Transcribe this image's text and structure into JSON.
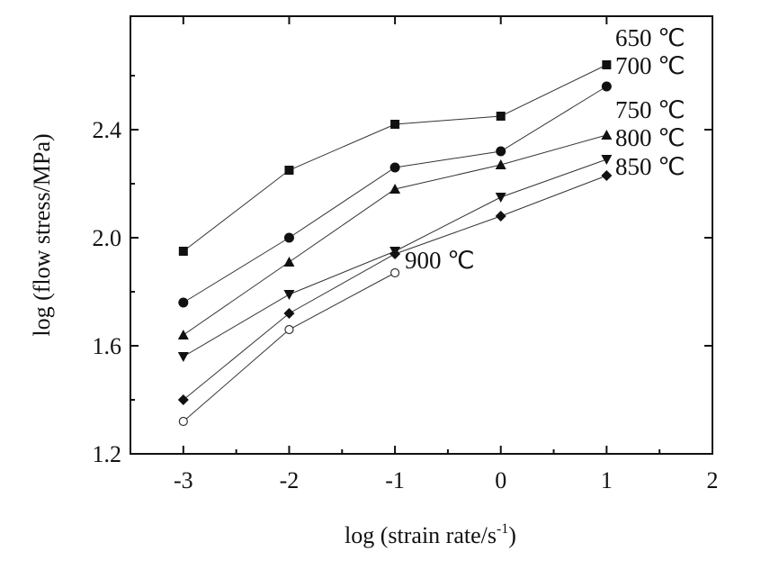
{
  "chart_data": {
    "type": "line",
    "title": "",
    "xlabel": "log (strain rate/s",
    "xlabel_sup": "-1",
    "xlabel_close": ")",
    "ylabel": "log (flow stress/MPa)",
    "xlim": [
      -3.5,
      2
    ],
    "ylim": [
      1.2,
      2.82
    ],
    "x_ticks": [
      -3,
      -2,
      -1,
      0,
      1,
      2
    ],
    "x_tick_labels": [
      "-3",
      "-2",
      "-1",
      "0",
      "1",
      "2"
    ],
    "y_ticks": [
      1.2,
      1.6,
      2.0,
      2.4
    ],
    "y_tick_labels": [
      "1.2",
      "1.6",
      "2.0",
      "2.4"
    ],
    "grid": false,
    "legend": "inline labels at right end of lines",
    "series": [
      {
        "name": "650 ℃",
        "marker": "square",
        "x": [
          -3,
          -2,
          -1,
          0,
          1
        ],
        "y": [
          1.95,
          2.25,
          2.42,
          2.45,
          2.64
        ]
      },
      {
        "name": "700 ℃",
        "marker": "circle",
        "x": [
          -3,
          -2,
          -1,
          0,
          1
        ],
        "y": [
          1.76,
          2.0,
          2.26,
          2.32,
          2.56
        ]
      },
      {
        "name": "750 ℃",
        "marker": "triangle-up",
        "x": [
          -3,
          -2,
          -1,
          0,
          1
        ],
        "y": [
          1.64,
          1.91,
          2.18,
          2.27,
          2.38
        ]
      },
      {
        "name": "800 ℃",
        "marker": "triangle-down",
        "x": [
          -3,
          -2,
          -1,
          0,
          1
        ],
        "y": [
          1.56,
          1.79,
          1.95,
          2.15,
          2.29
        ]
      },
      {
        "name": "850 ℃",
        "marker": "diamond",
        "x": [
          -3,
          -2,
          -1,
          0,
          1
        ],
        "y": [
          1.4,
          1.72,
          1.94,
          2.08,
          2.23
        ]
      },
      {
        "name": "900 ℃",
        "marker": "open-circle",
        "x": [
          -3,
          -2,
          -1
        ],
        "y": [
          1.32,
          1.66,
          1.87
        ]
      }
    ]
  }
}
